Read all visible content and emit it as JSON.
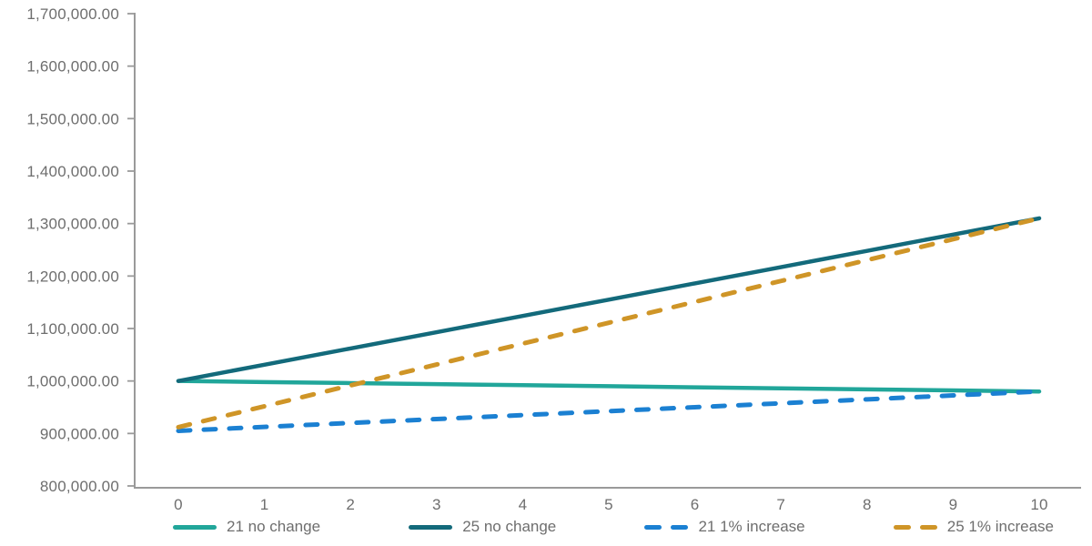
{
  "colors": {
    "axis": "#9a9a9a",
    "tick_label": "#6e6e6e",
    "background": "#ffffff"
  },
  "chart_data": {
    "type": "line",
    "title": "",
    "xlabel": "",
    "ylabel": "",
    "grid": false,
    "legend_position": "bottom",
    "xlim": [
      0,
      10
    ],
    "ylim": [
      800000,
      1700000
    ],
    "x": [
      0,
      1,
      2,
      3,
      4,
      5,
      6,
      7,
      8,
      9,
      10
    ],
    "x_tick_labels": [
      "0",
      "1",
      "2",
      "3",
      "4",
      "5",
      "6",
      "7",
      "8",
      "9",
      "10"
    ],
    "y_ticks": [
      {
        "value": 800000,
        "label": "800,000.00"
      },
      {
        "value": 900000,
        "label": "900,000.00"
      },
      {
        "value": 1000000,
        "label": "1,000,000.00"
      },
      {
        "value": 1100000,
        "label": "1,100,000.00"
      },
      {
        "value": 1200000,
        "label": "1,200,000.00"
      },
      {
        "value": 1300000,
        "label": "1,300,000.00"
      },
      {
        "value": 1400000,
        "label": "1,400,000.00"
      },
      {
        "value": 1500000,
        "label": "1,500,000.00"
      },
      {
        "value": 1600000,
        "label": "1,600,000.00"
      },
      {
        "value": 1700000,
        "label": "1,700,000.00"
      }
    ],
    "series": [
      {
        "name": "21 no change",
        "color": "#21a69a",
        "dash": false,
        "values": [
          1000000,
          998000,
          996000,
          994000,
          992000,
          990000,
          988000,
          986000,
          984000,
          982000,
          980000
        ]
      },
      {
        "name": "25 no change",
        "color": "#136a7b",
        "dash": false,
        "values": [
          1000000,
          1031000,
          1062000,
          1093000,
          1124000,
          1155000,
          1186000,
          1217000,
          1248000,
          1279000,
          1310000
        ]
      },
      {
        "name": "21 1% increase",
        "color": "#1b80d2",
        "dash": true,
        "values": [
          905000,
          912500,
          920000,
          927500,
          935000,
          942500,
          950000,
          957500,
          965000,
          972500,
          980000
        ]
      },
      {
        "name": "25 1% increase",
        "color": "#cf9527",
        "dash": true,
        "values": [
          912000,
          951800,
          991600,
          1031400,
          1071200,
          1111000,
          1150800,
          1190600,
          1230400,
          1270200,
          1310000
        ]
      }
    ]
  }
}
